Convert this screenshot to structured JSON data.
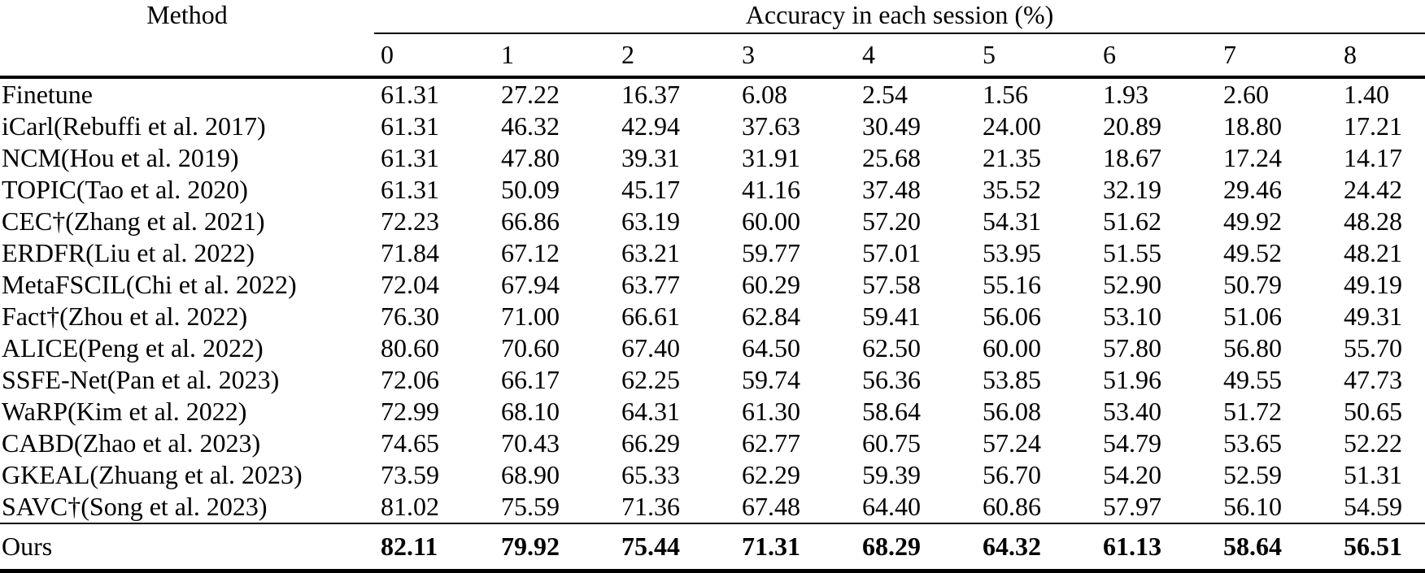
{
  "table": {
    "method_header": "Method",
    "group_header": "Accuracy in each session (%)",
    "session_columns": [
      "0",
      "1",
      "2",
      "3",
      "4",
      "5",
      "6",
      "7",
      "8"
    ],
    "rows": [
      {
        "method": "Finetune",
        "values": [
          "61.31",
          "27.22",
          "16.37",
          "6.08",
          "2.54",
          "1.56",
          "1.93",
          "2.60",
          "1.40"
        ]
      },
      {
        "method": "iCarl(Rebuffi et al. 2017)",
        "values": [
          "61.31",
          "46.32",
          "42.94",
          "37.63",
          "30.49",
          "24.00",
          "20.89",
          "18.80",
          "17.21"
        ]
      },
      {
        "method": "NCM(Hou et al. 2019)",
        "values": [
          "61.31",
          "47.80",
          "39.31",
          "31.91",
          "25.68",
          "21.35",
          "18.67",
          "17.24",
          "14.17"
        ]
      },
      {
        "method": "TOPIC(Tao et al. 2020)",
        "values": [
          "61.31",
          "50.09",
          "45.17",
          "41.16",
          "37.48",
          "35.52",
          "32.19",
          "29.46",
          "24.42"
        ]
      },
      {
        "method": "CEC†(Zhang et al. 2021)",
        "values": [
          "72.23",
          "66.86",
          "63.19",
          "60.00",
          "57.20",
          "54.31",
          "51.62",
          "49.92",
          "48.28"
        ]
      },
      {
        "method": "ERDFR(Liu et al. 2022)",
        "values": [
          "71.84",
          "67.12",
          "63.21",
          "59.77",
          "57.01",
          "53.95",
          "51.55",
          "49.52",
          "48.21"
        ]
      },
      {
        "method": "MetaFSCIL(Chi et al. 2022)",
        "values": [
          "72.04",
          "67.94",
          "63.77",
          "60.29",
          "57.58",
          "55.16",
          "52.90",
          "50.79",
          "49.19"
        ]
      },
      {
        "method": "Fact†(Zhou et al. 2022)",
        "values": [
          "76.30",
          "71.00",
          "66.61",
          "62.84",
          "59.41",
          "56.06",
          "53.10",
          "51.06",
          "49.31"
        ]
      },
      {
        "method": "ALICE(Peng et al. 2022)",
        "values": [
          "80.60",
          "70.60",
          "67.40",
          "64.50",
          "62.50",
          "60.00",
          "57.80",
          "56.80",
          "55.70"
        ]
      },
      {
        "method": "SSFE-Net(Pan et al. 2023)",
        "values": [
          "72.06",
          "66.17",
          "62.25",
          "59.74",
          "56.36",
          "53.85",
          "51.96",
          "49.55",
          "47.73"
        ]
      },
      {
        "method": "WaRP(Kim et al. 2022)",
        "values": [
          "72.99",
          "68.10",
          "64.31",
          "61.30",
          "58.64",
          "56.08",
          "53.40",
          "51.72",
          "50.65"
        ]
      },
      {
        "method": "CABD(Zhao et al. 2023)",
        "values": [
          "74.65",
          "70.43",
          "66.29",
          "62.77",
          "60.75",
          "57.24",
          "54.79",
          "53.65",
          "52.22"
        ]
      },
      {
        "method": "GKEAL(Zhuang et al. 2023)",
        "values": [
          "73.59",
          "68.90",
          "65.33",
          "62.29",
          "59.39",
          "56.70",
          "54.20",
          "52.59",
          "51.31"
        ]
      },
      {
        "method": "SAVC†(Song et al. 2023)",
        "values": [
          "81.02",
          "75.59",
          "71.36",
          "67.48",
          "64.40",
          "60.86",
          "57.97",
          "56.10",
          "54.59"
        ]
      }
    ],
    "ours_row": {
      "method": "Ours",
      "values": [
        "82.11",
        "79.92",
        "75.44",
        "71.31",
        "68.29",
        "64.32",
        "61.13",
        "58.64",
        "56.51"
      ]
    }
  },
  "colors": {
    "text": "#000000",
    "background": "#ffffff",
    "rule": "#000000"
  }
}
